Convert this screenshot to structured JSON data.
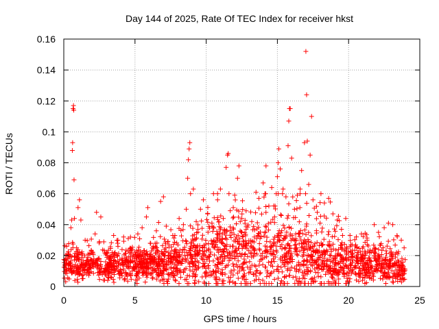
{
  "chart_data": {
    "type": "scatter",
    "title": "Day 144 of 2025, Rate Of TEC Index for receiver hkst",
    "xlabel": "GPS time / hours",
    "ylabel": "ROTI / TECUs",
    "xlim": [
      0,
      25
    ],
    "ylim": [
      0,
      0.16
    ],
    "xticks": [
      0,
      5,
      10,
      15,
      20,
      25
    ],
    "xtick_labels": [
      "0",
      "5",
      "10",
      "15",
      "20",
      "25"
    ],
    "yticks": [
      0,
      0.02,
      0.04,
      0.06,
      0.08,
      0.1,
      0.12,
      0.14,
      0.16
    ],
    "ytick_labels": [
      "0",
      "0.02",
      "0.04",
      "0.06",
      "0.08",
      "0.1",
      "0.12",
      "0.14",
      "0.16"
    ],
    "grid": true,
    "marker": "+",
    "marker_color": "#ff0000",
    "series": [
      {
        "name": "ROTI",
        "points": [
          [
            0.1,
            0.012
          ],
          [
            0.2,
            0.026
          ],
          [
            0.3,
            0.018
          ],
          [
            0.5,
            0.038
          ],
          [
            0.55,
            0.043
          ],
          [
            0.6,
            0.088
          ],
          [
            0.62,
            0.093
          ],
          [
            0.65,
            0.115
          ],
          [
            0.68,
            0.117
          ],
          [
            0.7,
            0.114
          ],
          [
            0.72,
            0.069
          ],
          [
            0.75,
            0.044
          ],
          [
            0.9,
            0.025
          ],
          [
            1.0,
            0.051
          ],
          [
            1.1,
            0.056
          ],
          [
            1.2,
            0.043
          ],
          [
            1.5,
            0.03
          ],
          [
            1.8,
            0.021
          ],
          [
            2.2,
            0.034
          ],
          [
            2.3,
            0.048
          ],
          [
            2.5,
            0.029
          ],
          [
            2.6,
            0.045
          ],
          [
            3.0,
            0.022
          ],
          [
            3.5,
            0.033
          ],
          [
            3.8,
            0.03
          ],
          [
            4.2,
            0.032
          ],
          [
            4.8,
            0.024
          ],
          [
            5.2,
            0.034
          ],
          [
            5.5,
            0.038
          ],
          [
            5.8,
            0.045
          ],
          [
            5.9,
            0.051
          ],
          [
            6.5,
            0.036
          ],
          [
            6.8,
            0.055
          ],
          [
            7.0,
            0.058
          ],
          [
            7.3,
            0.029
          ],
          [
            7.8,
            0.033
          ],
          [
            8.1,
            0.044
          ],
          [
            8.4,
            0.04
          ],
          [
            8.6,
            0.05
          ],
          [
            8.7,
            0.07
          ],
          [
            8.75,
            0.082
          ],
          [
            8.8,
            0.089
          ],
          [
            8.85,
            0.093
          ],
          [
            8.9,
            0.06
          ],
          [
            9.1,
            0.063
          ],
          [
            9.3,
            0.042
          ],
          [
            9.6,
            0.05
          ],
          [
            9.8,
            0.056
          ],
          [
            10.1,
            0.047
          ],
          [
            10.4,
            0.041
          ],
          [
            10.8,
            0.056
          ],
          [
            11.0,
            0.063
          ],
          [
            11.2,
            0.044
          ],
          [
            11.4,
            0.077
          ],
          [
            11.5,
            0.085
          ],
          [
            11.55,
            0.086
          ],
          [
            11.6,
            0.06
          ],
          [
            11.9,
            0.051
          ],
          [
            12.2,
            0.07
          ],
          [
            12.3,
            0.078
          ],
          [
            12.5,
            0.044
          ],
          [
            12.8,
            0.037
          ],
          [
            13.2,
            0.042
          ],
          [
            13.5,
            0.061
          ],
          [
            13.7,
            0.057
          ],
          [
            14.0,
            0.067
          ],
          [
            14.2,
            0.078
          ],
          [
            14.4,
            0.052
          ],
          [
            14.6,
            0.064
          ],
          [
            14.8,
            0.045
          ],
          [
            15.0,
            0.071
          ],
          [
            15.05,
            0.08
          ],
          [
            15.1,
            0.089
          ],
          [
            15.2,
            0.076
          ],
          [
            15.4,
            0.063
          ],
          [
            15.6,
            0.058
          ],
          [
            15.75,
            0.091
          ],
          [
            15.8,
            0.107
          ],
          [
            15.85,
            0.115
          ],
          [
            15.9,
            0.115
          ],
          [
            16.0,
            0.083
          ],
          [
            16.2,
            0.05
          ],
          [
            16.4,
            0.059
          ],
          [
            16.6,
            0.063
          ],
          [
            16.7,
            0.075
          ],
          [
            16.9,
            0.093
          ],
          [
            17.0,
            0.152
          ],
          [
            17.05,
            0.124
          ],
          [
            17.1,
            0.094
          ],
          [
            17.2,
            0.066
          ],
          [
            17.3,
            0.085
          ],
          [
            17.4,
            0.11
          ],
          [
            17.5,
            0.056
          ],
          [
            17.8,
            0.048
          ],
          [
            18.0,
            0.041
          ],
          [
            18.3,
            0.054
          ],
          [
            18.6,
            0.057
          ],
          [
            18.9,
            0.047
          ],
          [
            19.2,
            0.043
          ],
          [
            19.5,
            0.037
          ],
          [
            19.8,
            0.044
          ],
          [
            20.1,
            0.033
          ],
          [
            20.5,
            0.027
          ],
          [
            20.9,
            0.034
          ],
          [
            21.3,
            0.03
          ],
          [
            21.8,
            0.04
          ],
          [
            22.1,
            0.035
          ],
          [
            22.5,
            0.038
          ],
          [
            22.8,
            0.041
          ],
          [
            23.1,
            0.04
          ],
          [
            23.4,
            0.033
          ],
          [
            23.7,
            0.03
          ],
          [
            23.9,
            0.025
          ]
        ]
      }
    ]
  }
}
